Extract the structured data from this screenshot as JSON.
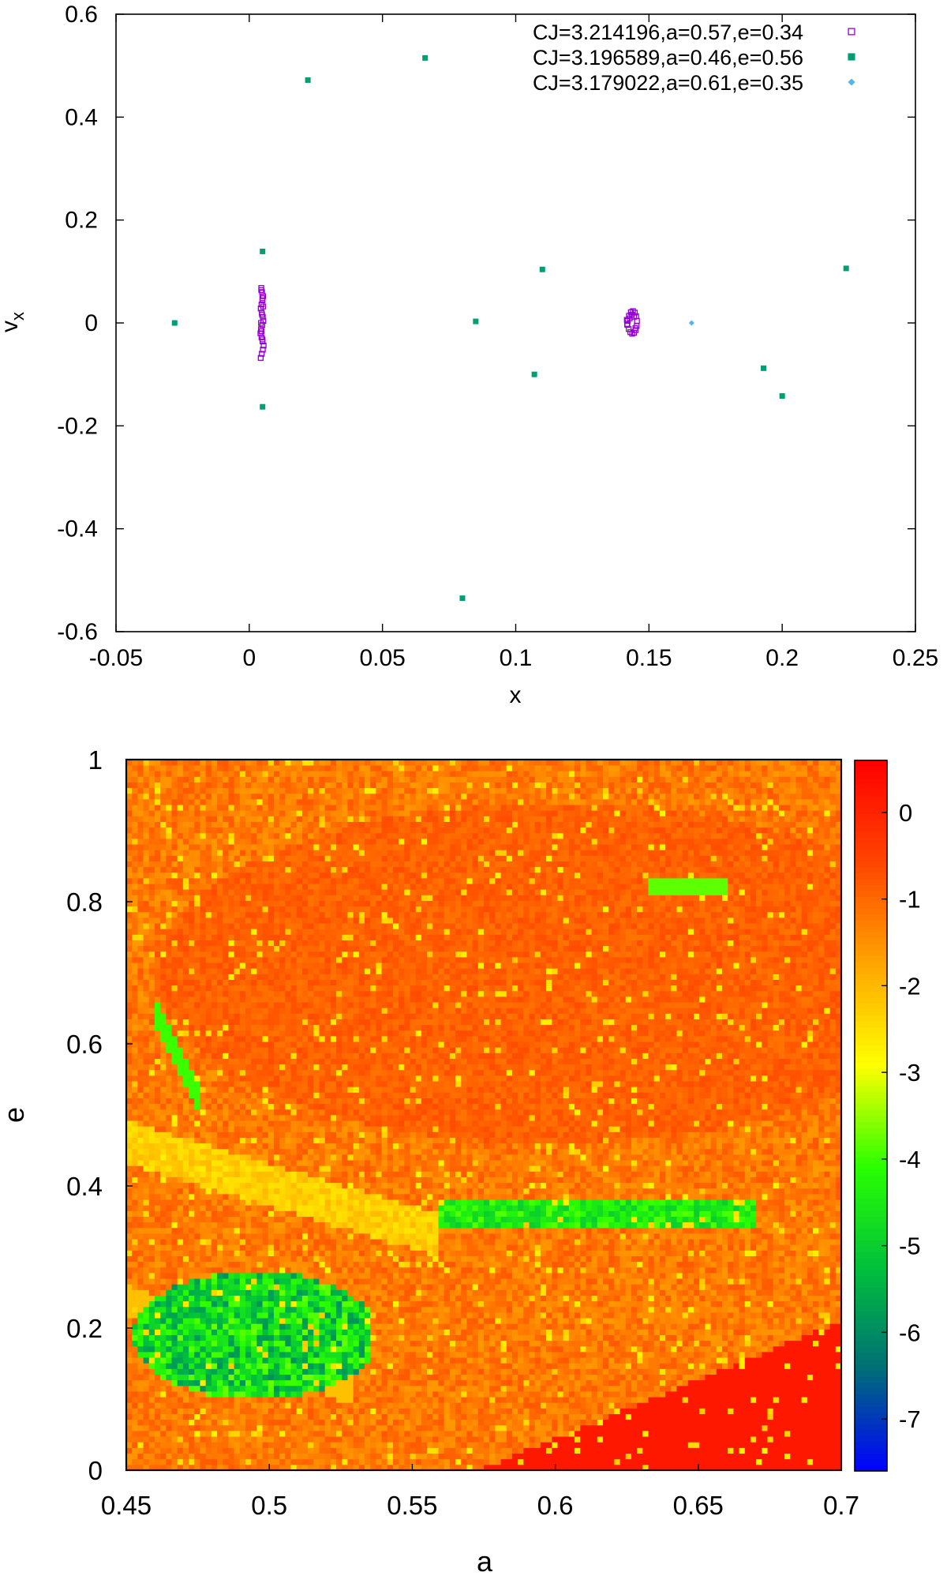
{
  "chart_data": [
    {
      "type": "scatter",
      "title": "",
      "xlabel": "x",
      "ylabel": "v",
      "ylabel_subscript": "x",
      "xlim": [
        -0.05,
        0.25
      ],
      "ylim": [
        -0.6,
        0.6
      ],
      "x_ticks": [
        "-0.05",
        "0",
        "0.05",
        "0.1",
        "0.15",
        "0.2",
        "0.25"
      ],
      "y_ticks": [
        "-0.6",
        "-0.4",
        "-0.2",
        "0",
        "0.2",
        "0.4",
        "0.6"
      ],
      "grid": false,
      "legend_position": "top-right",
      "series": [
        {
          "name": "CJ=3.214196,a=0.57,e=0.34",
          "marker": "open-square",
          "color": "#9400d3",
          "x": [
            0.0045,
            0.0048,
            0.0052,
            0.005,
            0.0046,
            0.0043,
            0.0047,
            0.0051,
            0.0053,
            0.0049,
            0.0044,
            0.0042,
            0.0046,
            0.005,
            0.0054,
            0.0051,
            0.0047,
            0.0043,
            0.0045,
            0.0049,
            0.0052,
            0.0048,
            0.0044,
            0.0046,
            0.005,
            0.142,
            0.1425,
            0.1432,
            0.144,
            0.1447,
            0.1452,
            0.1455,
            0.1454,
            0.145,
            0.1444,
            0.1437,
            0.143,
            0.1424,
            0.1419,
            0.1417,
            0.1418,
            0.1428,
            0.1436,
            0.1444,
            0.1449
          ],
          "y": [
            0.068,
            0.06,
            0.052,
            0.044,
            0.036,
            0.028,
            0.02,
            0.012,
            0.004,
            -0.004,
            -0.012,
            -0.02,
            -0.028,
            -0.036,
            -0.044,
            -0.052,
            -0.06,
            -0.068,
            0.064,
            0.048,
            0.032,
            0.016,
            0.0,
            -0.016,
            -0.032,
            0.004,
            0.014,
            0.021,
            0.023,
            0.02,
            0.013,
            0.004,
            -0.006,
            -0.014,
            -0.019,
            -0.021,
            -0.018,
            -0.012,
            -0.004,
            0.006,
            -0.002,
            0.009,
            0.016,
            0.012,
            -0.01
          ]
        },
        {
          "name": "CJ=3.196589,a=0.46,e=0.56",
          "marker": "filled-square",
          "color": "#009e73",
          "x": [
            -0.028,
            0.005,
            0.005,
            0.022,
            0.066,
            0.08,
            0.085,
            0.107,
            0.11,
            0.193,
            0.2,
            0.224
          ],
          "y": [
            0.0,
            0.139,
            -0.163,
            0.472,
            0.515,
            -0.535,
            0.003,
            -0.1,
            0.104,
            -0.088,
            -0.142,
            0.106
          ]
        },
        {
          "name": "CJ=3.179022,a=0.61,e=0.35",
          "marker": "small-diamond",
          "color": "#56b4e9",
          "x": [
            0.166
          ],
          "y": [
            0.0
          ]
        }
      ]
    },
    {
      "type": "heatmap",
      "title": "",
      "xlabel": "a",
      "ylabel": "e",
      "xlim": [
        0.45,
        0.7
      ],
      "ylim": [
        0,
        1
      ],
      "x_ticks": [
        "0.45",
        "0.5",
        "0.55",
        "0.6",
        "0.65",
        "0.7"
      ],
      "y_ticks": [
        "0",
        "0.2",
        "0.4",
        "0.6",
        "0.8",
        "1"
      ],
      "colorbar": {
        "range": [
          -7.6,
          0.6
        ],
        "ticks": [
          "0",
          "-1",
          "-2",
          "-3",
          "-4",
          "-5",
          "-6",
          "-7"
        ],
        "palette": [
          "#0000ff",
          "#006d77",
          "#00c03c",
          "#2aff00",
          "#ffff00",
          "#ffa500",
          "#ff4500",
          "#ff0000"
        ]
      },
      "grid_resolution": [
        126,
        126
      ],
      "regions": [
        {
          "label": "background",
          "value": -1.2
        },
        {
          "label": "upper resonance arc",
          "value": -0.9
        },
        {
          "label": "lower right triangle",
          "value": 0.2
        },
        {
          "label": "green island near a=0.46-0.53, e=0.1-0.28",
          "value": -4.8
        },
        {
          "label": "orange diagonal band",
          "value": -2.1
        },
        {
          "label": "green band near a=0.56-0.67, e=0.34-0.38",
          "value": -4.4
        },
        {
          "label": "thin green streak near a=0.46-0.47, e=0.55-0.62",
          "value": -4.0
        },
        {
          "label": "green streak near a=0.63-0.66, e=0.81-0.84",
          "value": -3.8
        }
      ]
    }
  ]
}
